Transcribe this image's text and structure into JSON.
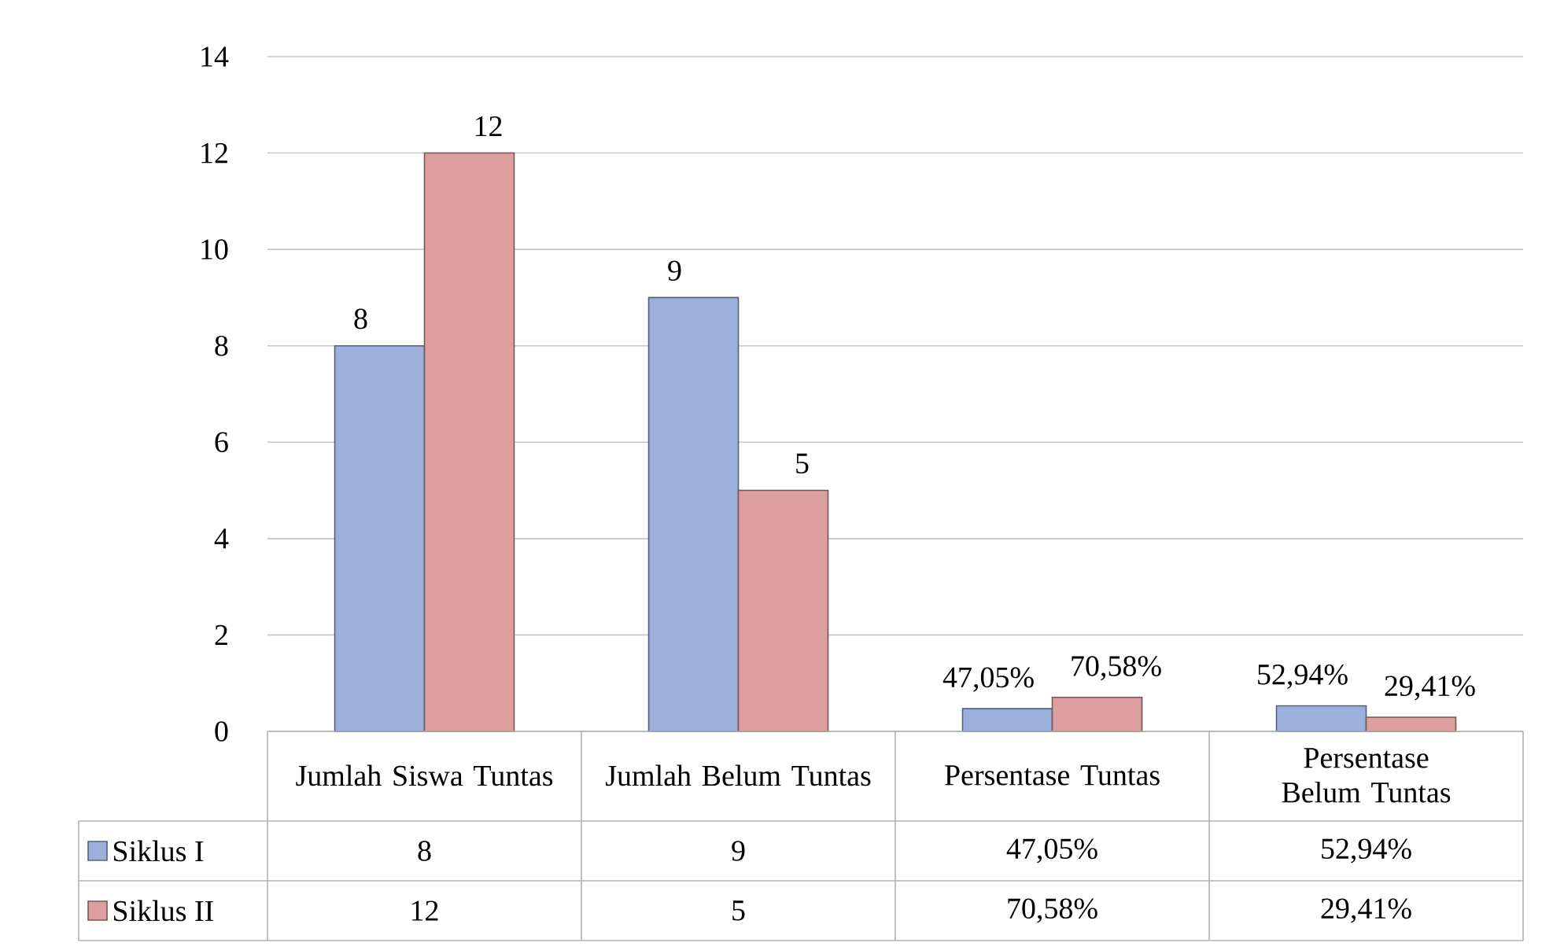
{
  "chart_data": {
    "type": "bar",
    "categories": [
      "Jumlah Siswa Tuntas",
      "Jumlah Belum Tuntas",
      "Persentase Tuntas",
      "Persentase Belum Tuntas"
    ],
    "series": [
      {
        "name": "Siklus I",
        "color": "#9bb1db",
        "values": [
          8,
          9,
          0.4705,
          0.5294
        ],
        "value_labels": [
          "8",
          "9",
          "47,05%",
          "52,94%"
        ]
      },
      {
        "name": "Siklus II",
        "color": "#dc9e9e",
        "values": [
          12,
          5,
          0.7058,
          0.2941
        ],
        "value_labels": [
          "12",
          "5",
          "70,58%",
          "29,41%"
        ]
      }
    ],
    "ylim": [
      0,
      14
    ],
    "yticks": [
      0,
      2,
      4,
      6,
      8,
      10,
      12,
      14
    ],
    "grid": "y",
    "legend": "bottom"
  }
}
